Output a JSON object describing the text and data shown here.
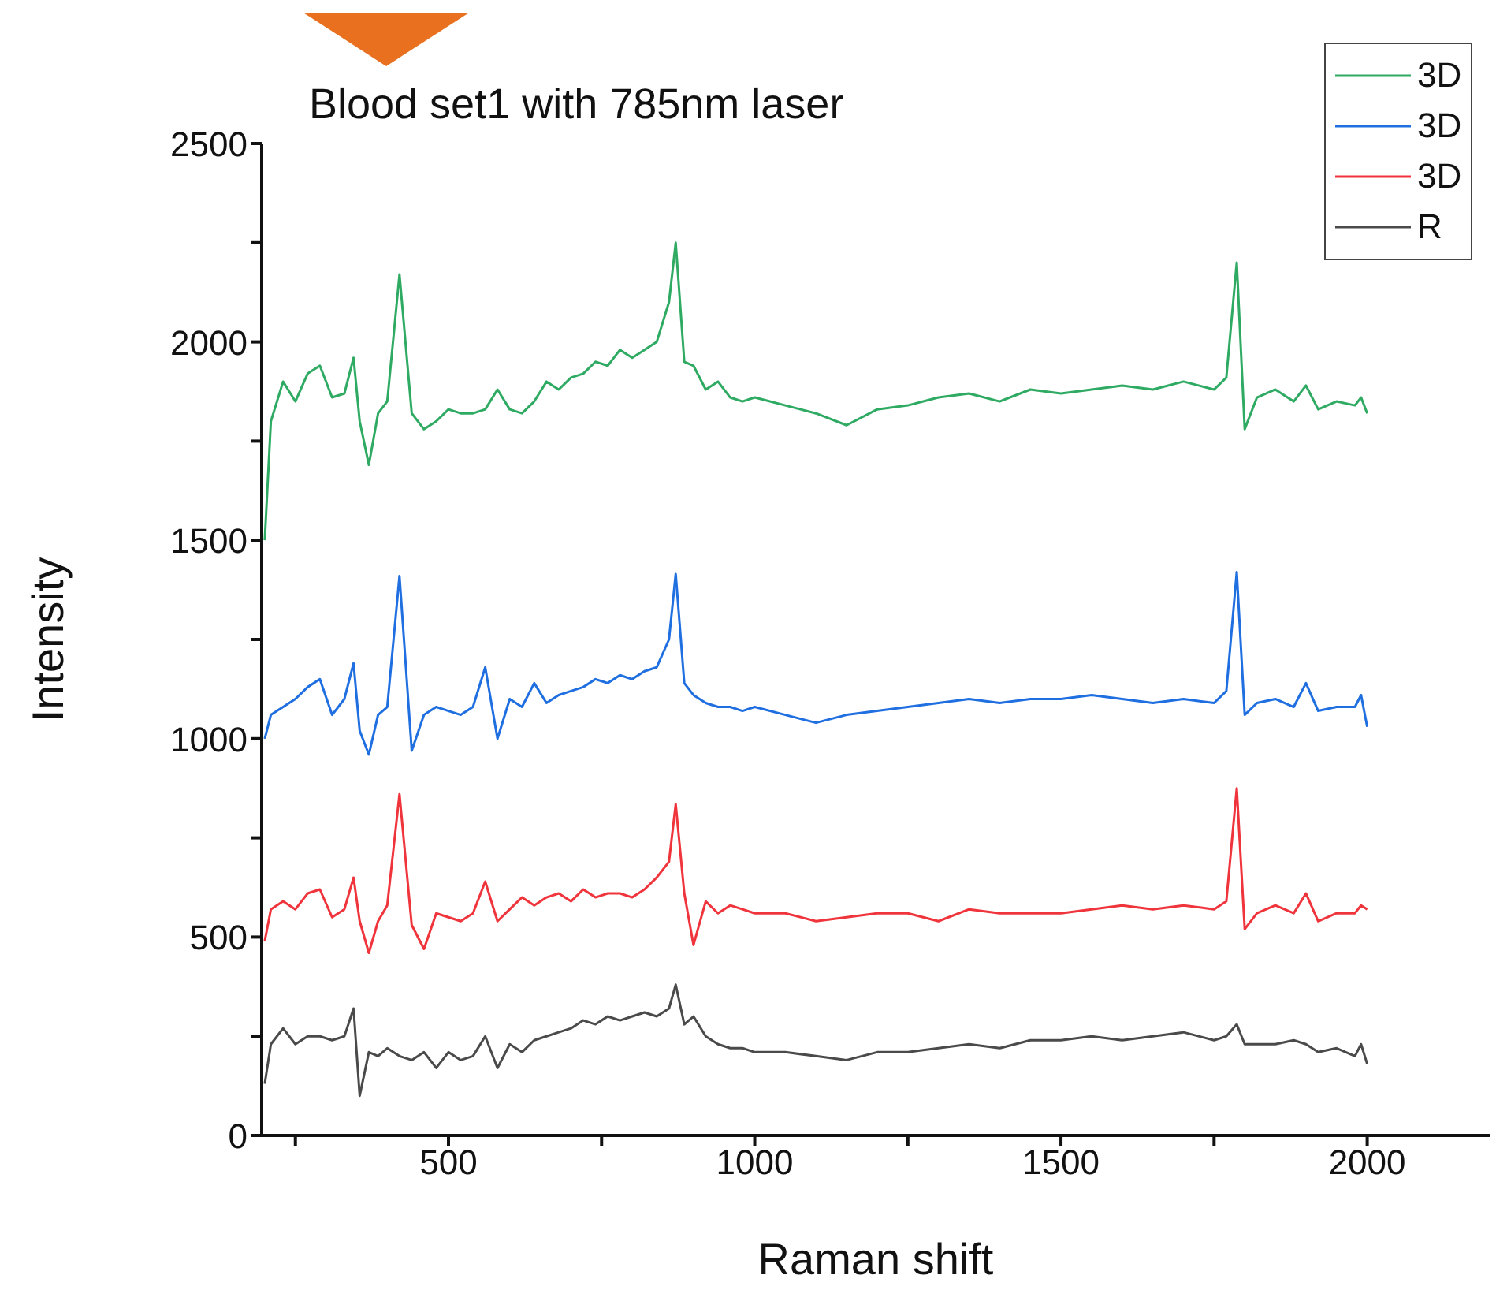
{
  "chart_data": {
    "type": "line",
    "title": "Blood set1 with 785nm laser",
    "xlabel": "Raman shift",
    "ylabel": "Intensity",
    "x": [
      200,
      210,
      230,
      250,
      270,
      290,
      310,
      330,
      345,
      355,
      370,
      385,
      400,
      420,
      440,
      460,
      480,
      500,
      520,
      540,
      560,
      580,
      600,
      620,
      640,
      660,
      680,
      700,
      720,
      740,
      760,
      780,
      800,
      820,
      840,
      860,
      871,
      885,
      900,
      920,
      940,
      960,
      980,
      1000,
      1050,
      1100,
      1150,
      1200,
      1250,
      1300,
      1350,
      1400,
      1450,
      1500,
      1550,
      1600,
      1650,
      1700,
      1750,
      1770,
      1787,
      1800,
      1820,
      1850,
      1880,
      1900,
      1920,
      1950,
      1980,
      1990,
      2000
    ],
    "series": [
      {
        "name": "3D",
        "color": "#2eaa62",
        "values": [
          1500,
          1800,
          1900,
          1850,
          1920,
          1940,
          1860,
          1870,
          1960,
          1800,
          1690,
          1820,
          1850,
          2170,
          1820,
          1780,
          1800,
          1830,
          1820,
          1820,
          1830,
          1880,
          1830,
          1820,
          1850,
          1900,
          1880,
          1910,
          1920,
          1950,
          1940,
          1980,
          1960,
          1980,
          2000,
          2100,
          2250,
          1950,
          1940,
          1880,
          1900,
          1860,
          1850,
          1860,
          1840,
          1820,
          1790,
          1830,
          1840,
          1860,
          1870,
          1850,
          1880,
          1870,
          1880,
          1890,
          1880,
          1900,
          1880,
          1910,
          2200,
          1780,
          1860,
          1880,
          1850,
          1890,
          1830,
          1850,
          1840,
          1860,
          1820
        ]
      },
      {
        "name": "3D",
        "color": "#1f6fe0",
        "values": [
          1000,
          1060,
          1080,
          1100,
          1130,
          1150,
          1060,
          1100,
          1190,
          1020,
          960,
          1060,
          1080,
          1410,
          970,
          1060,
          1080,
          1070,
          1060,
          1080,
          1180,
          1000,
          1100,
          1080,
          1140,
          1090,
          1110,
          1120,
          1130,
          1150,
          1140,
          1160,
          1150,
          1170,
          1180,
          1250,
          1415,
          1140,
          1110,
          1090,
          1080,
          1080,
          1070,
          1080,
          1060,
          1040,
          1060,
          1070,
          1080,
          1090,
          1100,
          1090,
          1100,
          1100,
          1110,
          1100,
          1090,
          1100,
          1090,
          1120,
          1420,
          1060,
          1090,
          1100,
          1080,
          1140,
          1070,
          1080,
          1080,
          1110,
          1030
        ]
      },
      {
        "name": "3D",
        "color": "#f0343c",
        "values": [
          490,
          570,
          590,
          570,
          610,
          620,
          550,
          570,
          650,
          540,
          460,
          540,
          580,
          860,
          530,
          470,
          560,
          550,
          540,
          560,
          640,
          540,
          570,
          600,
          580,
          600,
          610,
          590,
          620,
          600,
          610,
          610,
          600,
          620,
          650,
          690,
          835,
          610,
          480,
          590,
          560,
          580,
          570,
          560,
          560,
          540,
          550,
          560,
          560,
          540,
          570,
          560,
          560,
          560,
          570,
          580,
          570,
          580,
          570,
          590,
          875,
          520,
          560,
          580,
          560,
          610,
          540,
          560,
          560,
          580,
          570
        ]
      },
      {
        "name": "R",
        "color": "#4a4a4a",
        "values": [
          130,
          230,
          270,
          230,
          250,
          250,
          240,
          250,
          320,
          100,
          210,
          200,
          220,
          200,
          190,
          210,
          170,
          210,
          190,
          200,
          250,
          170,
          230,
          210,
          240,
          250,
          260,
          270,
          290,
          280,
          300,
          290,
          300,
          310,
          300,
          320,
          380,
          280,
          300,
          250,
          230,
          220,
          220,
          210,
          210,
          200,
          190,
          210,
          210,
          220,
          230,
          220,
          240,
          240,
          250,
          240,
          250,
          260,
          240,
          250,
          280,
          230,
          230,
          230,
          240,
          230,
          210,
          220,
          200,
          230,
          180
        ]
      }
    ],
    "xlim": [
      195,
      2200
    ],
    "xticks": [
      {
        "value": 250,
        "label": null
      },
      500,
      {
        "value": 750,
        "label": null
      },
      1000,
      {
        "value": 1250,
        "label": null
      },
      1500,
      {
        "value": 1750,
        "label": null
      },
      2000
    ],
    "ylim": [
      0,
      2500
    ],
    "yticks": [
      0,
      {
        "value": 250,
        "label": null
      },
      500,
      {
        "value": 750,
        "label": null
      },
      1000,
      {
        "value": 1250,
        "label": null
      },
      1500,
      {
        "value": 1750,
        "label": null
      },
      2000,
      {
        "value": 2250,
        "label": null
      },
      2500
    ],
    "grid": false,
    "legend": "top right",
    "marker": "none",
    "line_style": "solid"
  }
}
